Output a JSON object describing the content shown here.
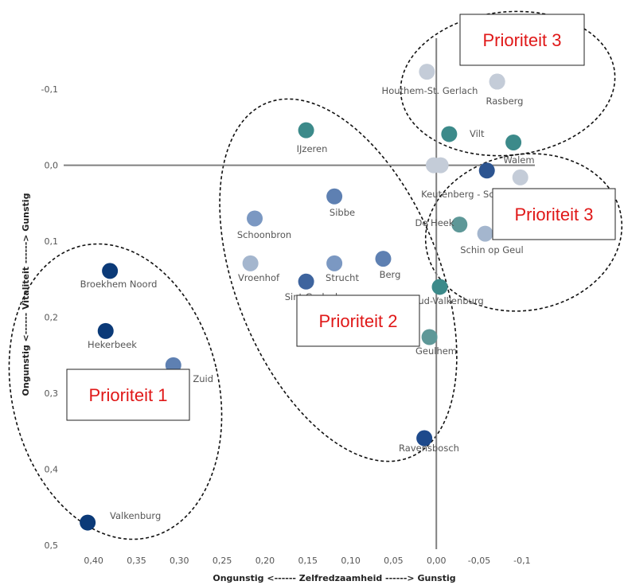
{
  "chart_data": {
    "type": "scatter",
    "xlabel": "Ongunstig <------ Zelfredzaamheid ------> Gunstig",
    "ylabel": "Ongunstig <------ Vitaliteit ------> Gunstig",
    "xlim": [
      0.435,
      -0.115
    ],
    "ylim": [
      -0.165,
      0.505
    ],
    "x_ticks": [
      {
        "value": 0.4,
        "label": "0,40"
      },
      {
        "value": 0.35,
        "label": "0,35"
      },
      {
        "value": 0.3,
        "label": "0,30"
      },
      {
        "value": 0.25,
        "label": "0,25"
      },
      {
        "value": 0.2,
        "label": "0,20"
      },
      {
        "value": 0.15,
        "label": "0,15"
      },
      {
        "value": 0.1,
        "label": "0,10"
      },
      {
        "value": 0.05,
        "label": "0,05"
      },
      {
        "value": 0.0,
        "label": "0,00"
      },
      {
        "value": -0.05,
        "label": "-0,05"
      },
      {
        "value": -0.1,
        "label": "-0,1"
      }
    ],
    "y_ticks": [
      {
        "value": -0.1,
        "label": "-0,1"
      },
      {
        "value": 0.0,
        "label": "0,0"
      },
      {
        "value": 0.1,
        "label": "0,1"
      },
      {
        "value": 0.2,
        "label": "0,2"
      },
      {
        "value": 0.3,
        "label": "0,3"
      },
      {
        "value": 0.4,
        "label": "0,4"
      },
      {
        "value": 0.5,
        "label": "0,5"
      }
    ],
    "points": [
      {
        "label": "Houthem-St. Gerlach",
        "x": 0.011,
        "y": -0.123,
        "color": "#c4ccd8"
      },
      {
        "label": "",
        "x": -0.071,
        "y": -0.11,
        "color": "#c4ccd8"
      },
      {
        "label": "Rasberg",
        "x": -0.071,
        "y": -0.11,
        "color": "#c4ccd8"
      },
      {
        "label": "Vilt",
        "x": -0.015,
        "y": -0.041,
        "color": "#3c8a8a"
      },
      {
        "label": "Walem",
        "x": -0.09,
        "y": -0.03,
        "color": "#3c8a8a"
      },
      {
        "label": "IJzeren",
        "x": 0.152,
        "y": -0.046,
        "color": "#3c8a8a"
      },
      {
        "label": "",
        "x": 0.003,
        "y": 0.0,
        "color": "#c4ccd8"
      },
      {
        "label": "",
        "x": -0.005,
        "y": 0.0,
        "color": "#c4ccd8"
      },
      {
        "label": "Keutenberg - Sousberg",
        "x": -0.059,
        "y": 0.007,
        "color": "#2c5490"
      },
      {
        "label": "",
        "x": -0.098,
        "y": 0.016,
        "color": "#c4ccd8"
      },
      {
        "label": "Sibbe",
        "x": 0.119,
        "y": 0.041,
        "color": "#5e80b2"
      },
      {
        "label": "Schoonbron",
        "x": 0.212,
        "y": 0.07,
        "color": "#7b98c2"
      },
      {
        "label": "De Heek",
        "x": -0.027,
        "y": 0.078,
        "color": "#5e9898"
      },
      {
        "label": "Schin op Geul",
        "x": -0.057,
        "y": 0.09,
        "color": "#a4b6ce"
      },
      {
        "label": "Vroenhof",
        "x": 0.217,
        "y": 0.129,
        "color": "#a4b6ce"
      },
      {
        "label": "Strucht",
        "x": 0.119,
        "y": 0.129,
        "color": "#7b98c2"
      },
      {
        "label": "Berg",
        "x": 0.062,
        "y": 0.123,
        "color": "#5e80b2"
      },
      {
        "label": "Sint Gerlach",
        "x": 0.152,
        "y": 0.153,
        "color": "#3e649e"
      },
      {
        "label": "Oud-Valkenburg",
        "x": -0.004,
        "y": 0.16,
        "color": "#3c8a8a"
      },
      {
        "label": "Broekhem Noord",
        "x": 0.381,
        "y": 0.139,
        "color": "#0b3a78"
      },
      {
        "label": "Hekerbeek",
        "x": 0.386,
        "y": 0.218,
        "color": "#0b3a78"
      },
      {
        "label": "Broekhem Zuid",
        "x": 0.307,
        "y": 0.263,
        "color": "#5e80b2"
      },
      {
        "label": "Geulhem",
        "x": 0.008,
        "y": 0.226,
        "color": "#5e9898"
      },
      {
        "label": "Ravensbosch",
        "x": 0.014,
        "y": 0.359,
        "color": "#1e4a8c"
      },
      {
        "label": "Valkenburg",
        "x": 0.407,
        "y": 0.47,
        "color": "#0b3a78"
      }
    ],
    "annotations": [
      {
        "text": "Prioriteit 1"
      },
      {
        "text": "Prioriteit 2"
      },
      {
        "text": "Prioriteit 3"
      },
      {
        "text": "Prioriteit 3"
      }
    ]
  }
}
